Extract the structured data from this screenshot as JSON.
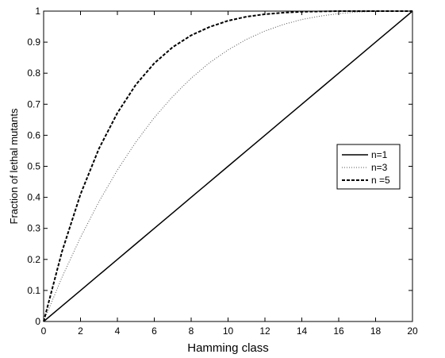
{
  "chart_data": {
    "type": "line",
    "title": "",
    "xlabel": "Hamming class",
    "ylabel": "Fraction of lethal mutants",
    "xlim": [
      0,
      20
    ],
    "ylim": [
      0,
      1
    ],
    "xticks": [
      0,
      2,
      4,
      6,
      8,
      10,
      12,
      14,
      16,
      18,
      20
    ],
    "yticks": [
      0,
      0.1,
      0.2,
      0.3,
      0.4,
      0.5,
      0.6,
      0.7,
      0.8,
      0.9,
      1
    ],
    "xtick_labels": [
      "0",
      "2",
      "4",
      "6",
      "8",
      "10",
      "12",
      "14",
      "16",
      "18",
      "20"
    ],
    "ytick_labels": [
      "0",
      "0.1",
      "0.2",
      "0.3",
      "0.4",
      "0.5",
      "0.6",
      "0.7",
      "0.8",
      "0.9",
      "1"
    ],
    "grid": false,
    "legend_position": "right",
    "x": [
      0,
      1,
      2,
      3,
      4,
      5,
      6,
      7,
      8,
      9,
      10,
      11,
      12,
      13,
      14,
      15,
      16,
      17,
      18,
      19,
      20
    ],
    "series": [
      {
        "name": "n=1",
        "style": "solid",
        "color": "#000000",
        "values": [
          0,
          0.05,
          0.1,
          0.15,
          0.2,
          0.25,
          0.3,
          0.35,
          0.4,
          0.45,
          0.5,
          0.55,
          0.6,
          0.65,
          0.7,
          0.75,
          0.8,
          0.85,
          0.9,
          0.95,
          1.0
        ]
      },
      {
        "name": "n=3",
        "style": "dotted",
        "color": "#555555",
        "values": [
          0,
          0.143,
          0.271,
          0.386,
          0.488,
          0.578,
          0.657,
          0.725,
          0.784,
          0.834,
          0.875,
          0.909,
          0.936,
          0.957,
          0.973,
          0.984,
          0.992,
          0.997,
          0.999,
          1.0,
          1.0
        ]
      },
      {
        "name": "n =5",
        "style": "dashed",
        "color": "#000000",
        "values": [
          0,
          0.226,
          0.41,
          0.557,
          0.672,
          0.763,
          0.832,
          0.884,
          0.922,
          0.949,
          0.969,
          0.982,
          0.99,
          0.995,
          0.998,
          0.999,
          1.0,
          1.0,
          1.0,
          1.0,
          1.0
        ]
      }
    ]
  }
}
